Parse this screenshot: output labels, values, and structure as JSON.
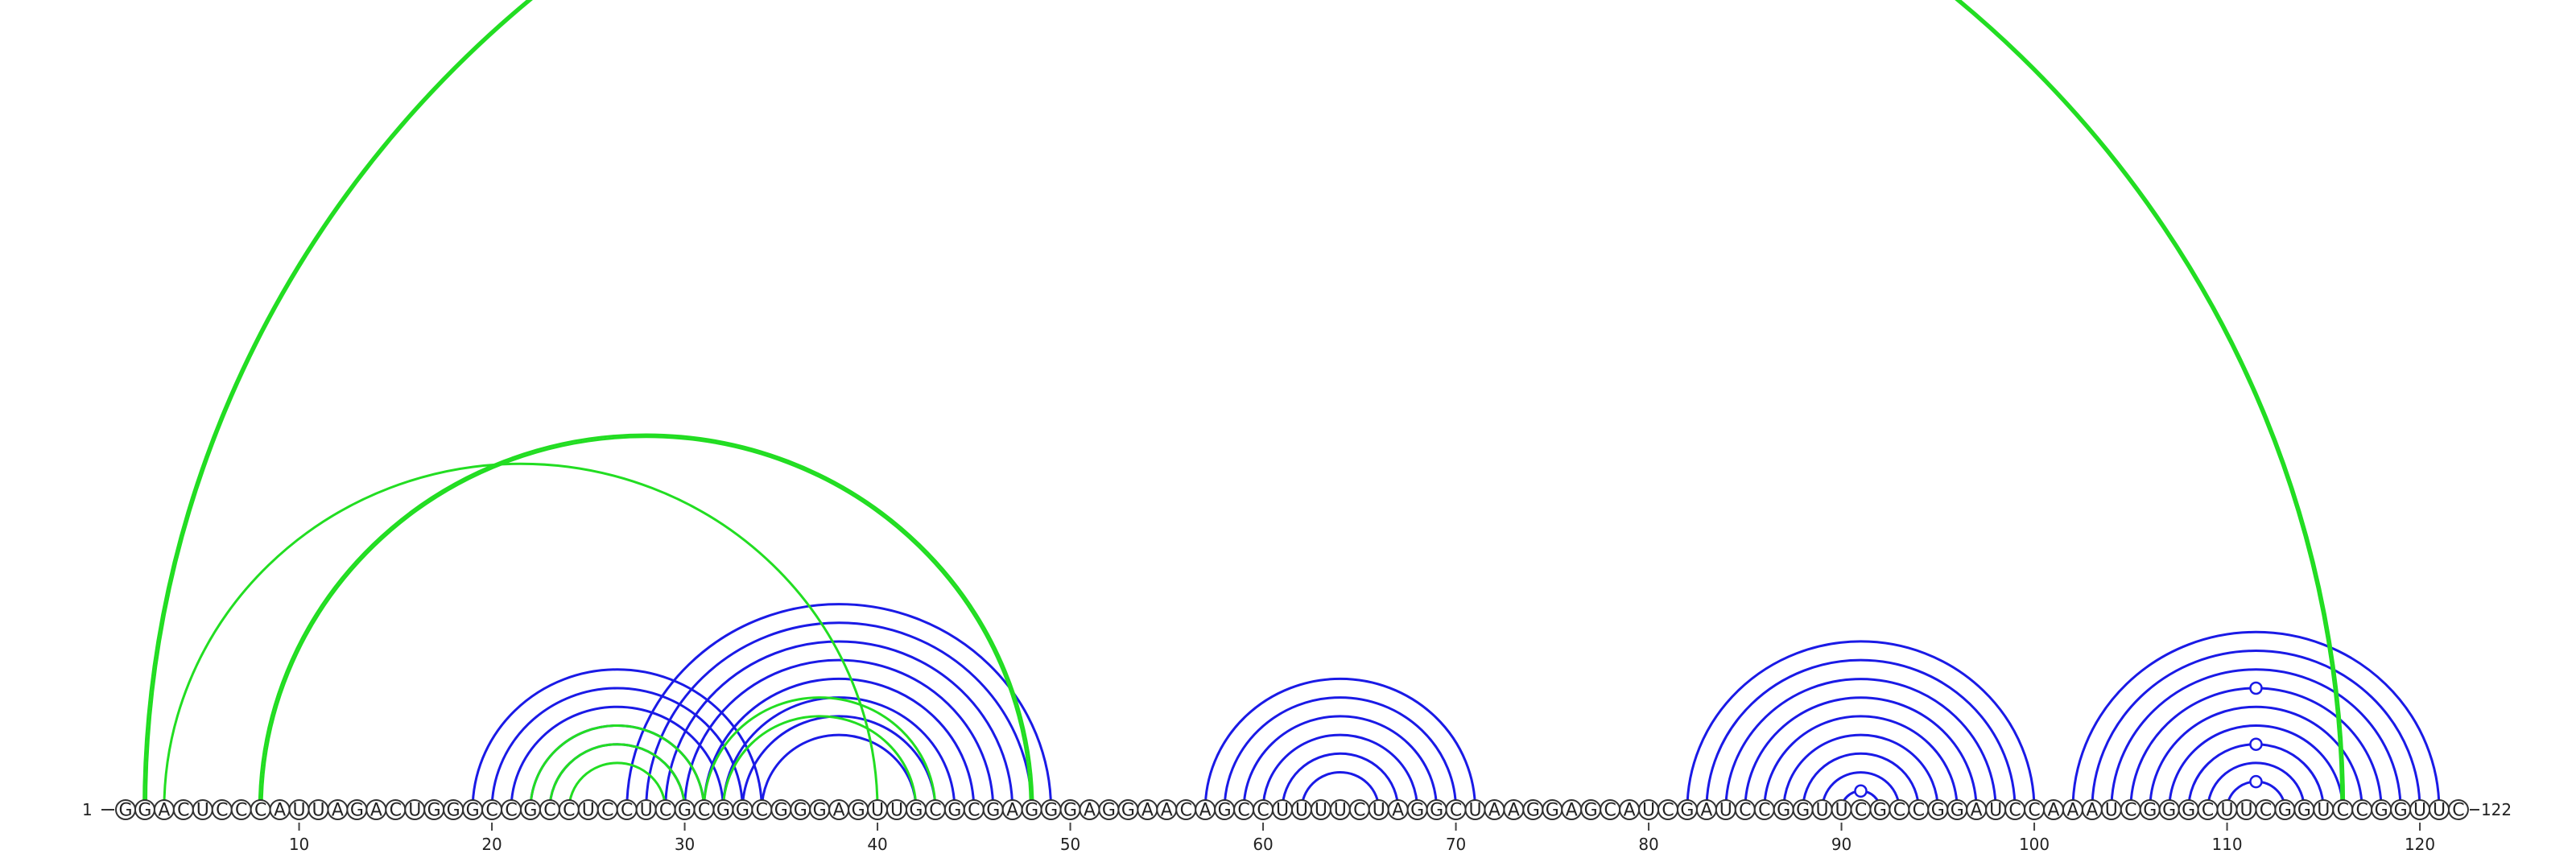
{
  "sequence": "GGACUCCCAUUAGACUGGGCCGCCUCCUCGCGGCGGGAGUUGCGCGAGGGAGGAACAGCCUUUUCUAGGCUAAGGAGCAUCGAUCCGGUUCGCCGGAUCCAAAUCGGGCUUCGGUCCGGUUC",
  "start_label": "1",
  "end_label": "122",
  "tick_labels": [
    "10",
    "20",
    "30",
    "40",
    "50",
    "60",
    "70",
    "80",
    "90",
    "100",
    "110",
    "120"
  ],
  "colors": {
    "stem_blue": "#1a1ae6",
    "pseudoknot_green": "#22dd22",
    "outline": "#333333"
  },
  "chart_data": {
    "type": "arc-diagram",
    "sequence_length": 122,
    "blue_stems": [
      {
        "pairs": [
          [
            19,
            34
          ],
          [
            20,
            33
          ],
          [
            21,
            32
          ],
          [
            22,
            31
          ],
          [
            23,
            30
          ]
        ]
      },
      {
        "pairs": [
          [
            27,
            49
          ],
          [
            28,
            48
          ],
          [
            29,
            47
          ],
          [
            30,
            46
          ],
          [
            31,
            45
          ],
          [
            32,
            44
          ],
          [
            33,
            43
          ],
          [
            34,
            42
          ]
        ]
      },
      {
        "pairs": [
          [
            57,
            71
          ],
          [
            58,
            70
          ],
          [
            59,
            69
          ],
          [
            60,
            68
          ],
          [
            61,
            67
          ],
          [
            62,
            66
          ]
        ]
      },
      {
        "pairs": [
          [
            82,
            100
          ],
          [
            83,
            99
          ],
          [
            84,
            98
          ],
          [
            85,
            97
          ],
          [
            86,
            96
          ],
          [
            87,
            95
          ],
          [
            88,
            94
          ],
          [
            89,
            93
          ],
          [
            90,
            92
          ]
        ]
      },
      {
        "pairs": [
          [
            102,
            121
          ],
          [
            103,
            120
          ],
          [
            104,
            119
          ],
          [
            105,
            118
          ],
          [
            106,
            117
          ],
          [
            107,
            116
          ],
          [
            108,
            115
          ],
          [
            109,
            114
          ],
          [
            110,
            113
          ]
        ]
      }
    ],
    "green_stems": [
      {
        "pairs": [
          [
            2,
            116
          ]
        ],
        "double": true
      },
      {
        "pairs": [
          [
            3,
            40
          ]
        ],
        "double": false
      },
      {
        "pairs": [
          [
            8,
            48
          ]
        ],
        "double": true
      },
      {
        "pairs": [
          [
            22,
            31
          ],
          [
            23,
            30
          ],
          [
            24,
            29
          ]
        ],
        "double": false
      },
      {
        "pairs": [
          [
            31,
            43
          ],
          [
            32,
            42
          ]
        ],
        "double": false
      }
    ],
    "annotated_positions": [
      91,
      111
    ]
  }
}
